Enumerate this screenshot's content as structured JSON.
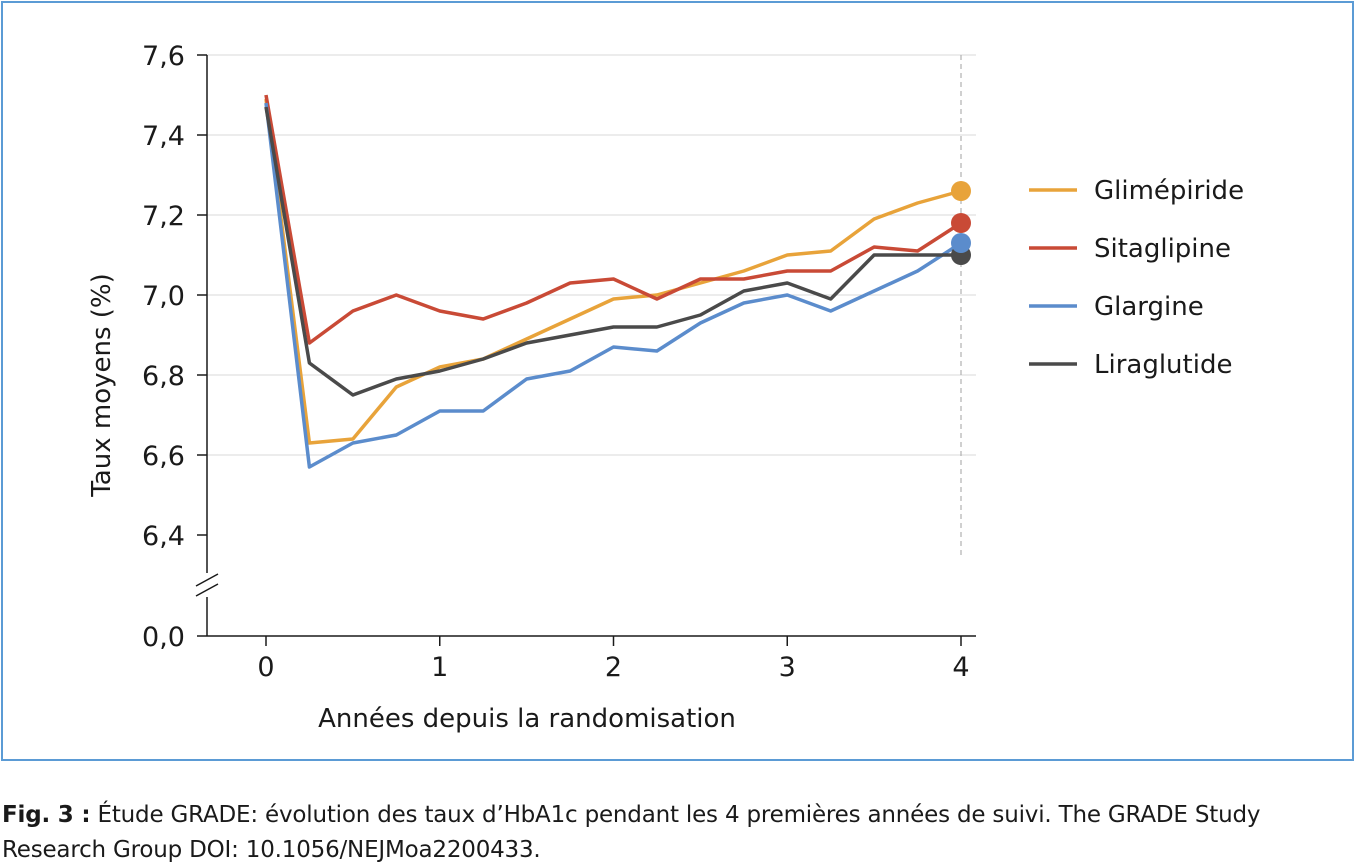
{
  "chart_data": {
    "type": "line",
    "xlabel": "Années depuis la randomisation",
    "ylabel": "Taux moyens (%)",
    "x_ticks": [
      "0",
      "1",
      "2",
      "3",
      "4"
    ],
    "y_ticks": [
      "7,6",
      "7,4",
      "7,2",
      "7,0",
      "6,8",
      "6,6",
      "6,4",
      "0,0"
    ],
    "y_range": [
      6.4,
      7.6
    ],
    "y_axis_break": true,
    "grid": true,
    "legend_position": "right",
    "x": [
      0,
      0.25,
      0.5,
      0.75,
      1,
      1.25,
      1.5,
      1.75,
      2,
      2.25,
      2.5,
      2.75,
      3,
      3.25,
      3.5,
      3.75,
      4
    ],
    "series": [
      {
        "name": "Glimépiride",
        "color": "#e8a33a",
        "values": [
          7.49,
          6.63,
          6.64,
          6.77,
          6.82,
          6.84,
          6.89,
          6.94,
          6.99,
          7.0,
          7.03,
          7.06,
          7.1,
          7.11,
          7.19,
          7.23,
          7.26
        ]
      },
      {
        "name": "Sitaglipine",
        "color": "#c94a36",
        "values": [
          7.5,
          6.88,
          6.96,
          7.0,
          6.96,
          6.94,
          6.98,
          7.03,
          7.04,
          6.99,
          7.04,
          7.04,
          7.06,
          7.06,
          7.12,
          7.11,
          7.18
        ]
      },
      {
        "name": "Glargine",
        "color": "#5b8ccc",
        "values": [
          7.48,
          6.57,
          6.63,
          6.65,
          6.71,
          6.71,
          6.79,
          6.81,
          6.87,
          6.86,
          6.93,
          6.98,
          7.0,
          6.96,
          7.01,
          7.06,
          7.13
        ]
      },
      {
        "name": "Liraglutide",
        "color": "#4a4a4a",
        "values": [
          7.47,
          6.83,
          6.75,
          6.79,
          6.81,
          6.84,
          6.88,
          6.9,
          6.92,
          6.92,
          6.95,
          7.01,
          7.03,
          6.99,
          7.1,
          7.1,
          7.1
        ]
      }
    ]
  },
  "caption": {
    "label": "Fig. 3 :",
    "text": " Étude GRADE: évolution des taux d’HbA1c pendant les 4 premières années de suivi. The GRADE Study Research Group DOI: 10.1056/NEJMoa2200433."
  }
}
